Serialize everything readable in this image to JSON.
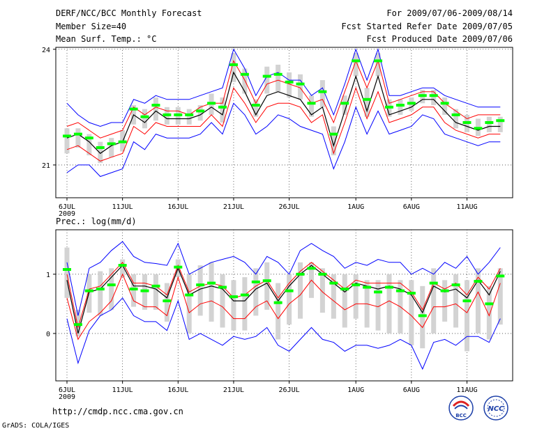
{
  "header": {
    "title": "DERF/NCC/BCC Monthly Forecast",
    "member_size": "Member Size=40",
    "variable": "Mean Surf. Temp.: °C",
    "period": "For 2009/07/06-2009/08/14",
    "started": "Fcst Started Refer Date 2009/07/05",
    "produced": "Fcst Produced Date 2009/07/06"
  },
  "prec_label": "Prec.: log(mm/d)",
  "url": "http://cmdp.ncc.cma.gov.cn",
  "credit": "GrADS: COLA/IGES",
  "logos": {
    "bcc": "BCC",
    "ncc": "NCC"
  },
  "colors": {
    "envelope": "#0000ff",
    "spread": "#ff0000",
    "mean": "#000000",
    "member": "#00ff00",
    "box": "#d3d3d3"
  },
  "chart_data": [
    {
      "type": "box",
      "title": "Mean Surf. Temp.: °C",
      "x_dates": [
        "6JUL",
        "7JUL",
        "8JUL",
        "9JUL",
        "10JUL",
        "11JUL",
        "12JUL",
        "13JUL",
        "14JUL",
        "15JUL",
        "16JUL",
        "17JUL",
        "18JUL",
        "19JUL",
        "20JUL",
        "21JUL",
        "22JUL",
        "23JUL",
        "24JUL",
        "25JUL",
        "26JUL",
        "27JUL",
        "28JUL",
        "29JUL",
        "30JUL",
        "31JUL",
        "1AUG",
        "2AUG",
        "3AUG",
        "4AUG",
        "5AUG",
        "6AUG",
        "7AUG",
        "8AUG",
        "9AUG",
        "10AUG",
        "11AUG",
        "12AUG",
        "13AUG",
        "14AUG"
      ],
      "xticks": [
        "6JUL",
        "11JUL",
        "16JUL",
        "21JUL",
        "26JUL",
        "1AUG",
        "6AUG",
        "11AUG"
      ],
      "year_label": "2009",
      "ylim": [
        20.15,
        24.05
      ],
      "yticks": [
        21,
        24
      ],
      "upper": [
        22.6,
        22.3,
        22.1,
        22.0,
        22.1,
        22.1,
        22.7,
        22.6,
        22.8,
        22.7,
        22.7,
        22.7,
        22.8,
        22.9,
        23.0,
        24.0,
        23.5,
        22.8,
        23.3,
        23.4,
        23.2,
        23.2,
        22.8,
        23.0,
        22.3,
        23.1,
        24.0,
        23.2,
        24.0,
        22.8,
        22.8,
        22.9,
        23.0,
        23.0,
        22.8,
        22.7,
        22.6,
        22.5,
        22.5,
        22.5
      ],
      "spread_hi": [
        22.0,
        22.1,
        21.9,
        21.7,
        21.8,
        21.9,
        22.5,
        22.3,
        22.5,
        22.4,
        22.4,
        22.3,
        22.5,
        22.6,
        22.6,
        23.7,
        23.2,
        22.6,
        23.1,
        23.2,
        23.1,
        23.0,
        22.6,
        22.7,
        22.1,
        22.9,
        23.7,
        23.0,
        23.7,
        22.6,
        22.7,
        22.8,
        22.9,
        22.9,
        22.6,
        22.4,
        22.2,
        22.3,
        22.3,
        22.3
      ],
      "mean": [
        21.7,
        21.8,
        21.6,
        21.3,
        21.5,
        21.6,
        22.3,
        22.1,
        22.4,
        22.2,
        22.2,
        22.2,
        22.3,
        22.5,
        22.3,
        23.4,
        22.9,
        22.3,
        22.8,
        22.9,
        22.8,
        22.7,
        22.3,
        22.5,
        21.5,
        22.4,
        23.3,
        22.4,
        23.3,
        22.3,
        22.4,
        22.5,
        22.7,
        22.7,
        22.4,
        22.1,
        22.0,
        21.9,
        22.0,
        22.0
      ],
      "spread_lo": [
        21.4,
        21.5,
        21.3,
        21.1,
        21.2,
        21.3,
        22.0,
        21.8,
        22.1,
        22.0,
        22.0,
        22.0,
        22.0,
        22.3,
        22.0,
        23.0,
        22.6,
        22.1,
        22.5,
        22.6,
        22.6,
        22.5,
        22.1,
        22.3,
        21.3,
        22.1,
        23.0,
        22.2,
        22.9,
        22.1,
        22.2,
        22.3,
        22.5,
        22.5,
        22.1,
        21.9,
        21.8,
        21.7,
        21.8,
        21.8
      ],
      "lower": [
        20.8,
        21.0,
        21.0,
        20.7,
        20.8,
        20.9,
        21.6,
        21.4,
        21.8,
        21.7,
        21.7,
        21.7,
        21.8,
        22.1,
        21.8,
        22.6,
        22.3,
        21.8,
        22.0,
        22.3,
        22.2,
        22.0,
        21.9,
        21.8,
        20.9,
        21.6,
        22.5,
        21.8,
        22.4,
        21.8,
        21.9,
        22.0,
        22.3,
        22.2,
        21.8,
        21.7,
        21.6,
        21.5,
        21.6,
        21.6
      ],
      "member_marks": [
        21.75,
        21.8,
        21.7,
        21.45,
        21.55,
        21.6,
        22.45,
        22.25,
        22.55,
        22.3,
        22.3,
        22.3,
        22.4,
        22.6,
        22.5,
        23.6,
        23.35,
        22.55,
        23.3,
        23.35,
        23.15,
        23.1,
        22.6,
        22.9,
        21.8,
        22.6,
        23.7,
        22.7,
        23.7,
        22.5,
        22.55,
        22.6,
        22.8,
        22.8,
        22.6,
        22.3,
        22.1,
        21.95,
        22.1,
        22.15
      ],
      "box_hi": [
        21.95,
        21.95,
        21.8,
        21.6,
        21.7,
        21.9,
        22.55,
        22.45,
        22.75,
        22.5,
        22.5,
        22.45,
        22.55,
        22.85,
        22.75,
        23.9,
        23.5,
        22.7,
        23.55,
        23.6,
        23.4,
        23.35,
        22.8,
        23.2,
        22.0,
        22.8,
        23.9,
        23.0,
        23.9,
        22.7,
        22.7,
        22.75,
        22.95,
        22.95,
        22.75,
        22.45,
        22.3,
        22.2,
        22.25,
        22.25
      ],
      "box_lo": [
        21.3,
        21.45,
        21.25,
        21.05,
        21.2,
        21.35,
        22.05,
        21.95,
        22.15,
        22.05,
        22.05,
        22.05,
        22.15,
        22.3,
        22.1,
        23.15,
        22.85,
        22.25,
        22.85,
        22.9,
        22.75,
        22.7,
        22.25,
        22.5,
        21.25,
        22.3,
        23.3,
        22.25,
        23.3,
        22.25,
        22.3,
        22.4,
        22.6,
        22.55,
        22.3,
        21.95,
        21.85,
        21.75,
        21.85,
        21.85
      ]
    },
    {
      "type": "box",
      "title": "Prec.: log(mm/d)",
      "x_dates": [
        "6JUL",
        "7JUL",
        "8JUL",
        "9JUL",
        "10JUL",
        "11JUL",
        "12JUL",
        "13JUL",
        "14JUL",
        "15JUL",
        "16JUL",
        "17JUL",
        "18JUL",
        "19JUL",
        "20JUL",
        "21JUL",
        "22JUL",
        "23JUL",
        "24JUL",
        "25JUL",
        "26JUL",
        "27JUL",
        "28JUL",
        "29JUL",
        "30JUL",
        "31JUL",
        "1AUG",
        "2AUG",
        "3AUG",
        "4AUG",
        "5AUG",
        "6AUG",
        "7AUG",
        "8AUG",
        "9AUG",
        "10AUG",
        "11AUG",
        "12AUG",
        "13AUG",
        "14AUG"
      ],
      "xticks": [
        "6JUL",
        "11JUL",
        "16JUL",
        "21JUL",
        "26JUL",
        "1AUG",
        "6AUG",
        "11AUG"
      ],
      "year_label": "2009",
      "ylim": [
        -0.8,
        1.75
      ],
      "yticks": [
        0,
        1
      ],
      "upper": [
        1.2,
        0.3,
        1.1,
        1.2,
        1.4,
        1.55,
        1.3,
        1.2,
        1.18,
        1.15,
        1.52,
        1.0,
        1.1,
        1.2,
        1.25,
        1.3,
        1.2,
        1.0,
        1.3,
        1.2,
        1.0,
        1.4,
        1.52,
        1.4,
        1.3,
        1.1,
        1.2,
        1.15,
        1.25,
        1.2,
        1.2,
        1.0,
        1.1,
        1.0,
        1.2,
        1.1,
        1.3,
        1.0,
        1.2,
        1.45
      ],
      "spread_hi": [
        1.0,
        0.1,
        0.75,
        0.8,
        1.0,
        1.2,
        0.85,
        0.85,
        0.8,
        0.65,
        1.15,
        0.7,
        0.8,
        0.85,
        0.8,
        0.6,
        0.65,
        0.8,
        0.9,
        0.6,
        0.85,
        1.05,
        1.2,
        1.05,
        0.9,
        0.75,
        0.9,
        0.85,
        0.85,
        0.85,
        0.85,
        0.7,
        0.4,
        0.85,
        0.75,
        0.85,
        0.65,
        0.95,
        0.75,
        1.1
      ],
      "mean": [
        0.9,
        0.0,
        0.7,
        0.75,
        0.95,
        1.15,
        0.8,
        0.8,
        0.75,
        0.6,
        1.1,
        0.65,
        0.75,
        0.8,
        0.75,
        0.55,
        0.55,
        0.75,
        0.85,
        0.55,
        0.8,
        1.0,
        1.15,
        1.0,
        0.85,
        0.7,
        0.85,
        0.8,
        0.75,
        0.8,
        0.75,
        0.65,
        0.35,
        0.8,
        0.7,
        0.75,
        0.6,
        0.9,
        0.65,
        1.05
      ],
      "spread_lo": [
        0.6,
        -0.1,
        0.2,
        0.35,
        0.55,
        1.0,
        0.55,
        0.45,
        0.45,
        0.3,
        0.95,
        0.35,
        0.5,
        0.55,
        0.45,
        0.25,
        0.25,
        0.45,
        0.55,
        0.25,
        0.5,
        0.65,
        0.9,
        0.7,
        0.55,
        0.4,
        0.5,
        0.5,
        0.45,
        0.55,
        0.45,
        0.3,
        0.1,
        0.45,
        0.45,
        0.5,
        0.35,
        0.7,
        0.3,
        0.85
      ],
      "lower": [
        0.25,
        -0.5,
        0.05,
        0.3,
        0.4,
        0.6,
        0.3,
        0.2,
        0.2,
        0.05,
        0.55,
        -0.1,
        0.0,
        -0.1,
        -0.2,
        -0.05,
        -0.1,
        -0.05,
        0.1,
        -0.2,
        -0.3,
        -0.1,
        0.1,
        -0.1,
        -0.15,
        -0.3,
        -0.2,
        -0.2,
        -0.25,
        -0.2,
        -0.1,
        -0.2,
        -0.6,
        -0.15,
        -0.1,
        -0.2,
        -0.05,
        -0.05,
        -0.15,
        0.25
      ],
      "member_marks": [
        1.08,
        0.15,
        0.72,
        0.75,
        0.82,
        1.15,
        0.75,
        0.72,
        0.8,
        0.55,
        1.12,
        0.65,
        0.82,
        0.85,
        0.78,
        0.62,
        0.65,
        0.87,
        0.89,
        0.52,
        0.72,
        1.0,
        1.1,
        1.0,
        0.85,
        0.75,
        0.82,
        0.78,
        0.7,
        0.78,
        0.72,
        0.68,
        0.3,
        0.85,
        0.72,
        0.82,
        0.55,
        0.88,
        0.5,
        0.97
      ],
      "box_hi": [
        1.45,
        0.4,
        1.0,
        1.05,
        1.1,
        1.25,
        1.0,
        1.0,
        1.0,
        0.85,
        1.25,
        1.0,
        1.15,
        1.2,
        1.0,
        0.9,
        0.95,
        1.1,
        1.2,
        0.85,
        1.0,
        1.2,
        1.2,
        1.1,
        1.0,
        1.0,
        1.0,
        0.9,
        0.9,
        1.0,
        0.9,
        0.9,
        0.8,
        1.1,
        0.9,
        1.0,
        0.9,
        1.1,
        0.8,
        1.1
      ],
      "box_lo": [
        0.6,
        -0.05,
        0.35,
        0.3,
        0.4,
        0.95,
        0.45,
        0.4,
        0.4,
        0.2,
        0.95,
        0.0,
        0.3,
        0.2,
        0.1,
        0.05,
        0.05,
        0.3,
        0.4,
        -0.1,
        0.15,
        0.25,
        0.6,
        0.35,
        0.25,
        0.1,
        0.25,
        0.1,
        0.05,
        0.0,
        0.0,
        -0.2,
        -0.25,
        0.0,
        0.2,
        0.1,
        -0.3,
        0.0,
        -0.1,
        0.15
      ]
    }
  ]
}
